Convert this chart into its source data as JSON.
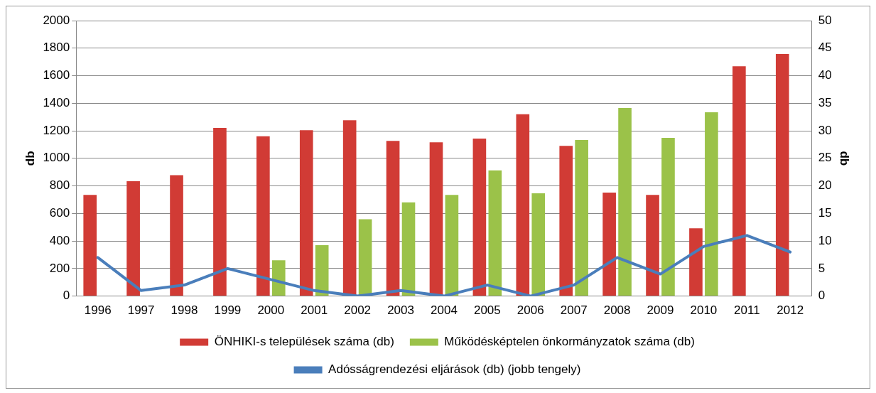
{
  "chart_data": {
    "type": "bar",
    "categories": [
      "1996",
      "1997",
      "1998",
      "1999",
      "2000",
      "2001",
      "2002",
      "2003",
      "2004",
      "2005",
      "2006",
      "2007",
      "2008",
      "2009",
      "2010",
      "2011",
      "2012"
    ],
    "series": [
      {
        "name": "ÖNHIKI-s települések száma (db)",
        "color": "#d13b35",
        "values": [
          735,
          834,
          878,
          1221,
          1160,
          1204,
          1276,
          1127,
          1116,
          1144,
          1320,
          1090,
          751,
          735,
          492,
          1669,
          1757
        ]
      },
      {
        "name": "Működésképtelen önkormányzatok száma (db)",
        "color": "#9bc249",
        "values": [
          null,
          null,
          null,
          null,
          260,
          370,
          558,
          680,
          735,
          912,
          746,
          1133,
          1365,
          1149,
          1335,
          null,
          null
        ]
      },
      {
        "name": "Adósságrendezési eljárások (db) (jobb tengely)",
        "type": "line",
        "axis": "y2",
        "color": "#4a7ebb",
        "values": [
          7,
          1,
          2,
          5,
          3,
          1,
          0,
          1,
          0,
          2,
          0,
          2,
          7,
          4,
          9,
          11,
          8
        ]
      }
    ],
    "ylabel": "db",
    "y2label": "db",
    "ylim": [
      0,
      2000
    ],
    "yticks": [
      0,
      200,
      400,
      600,
      800,
      1000,
      1200,
      1400,
      1600,
      1800,
      2000
    ],
    "y2lim": [
      0,
      50
    ],
    "y2ticks": [
      0,
      5,
      10,
      15,
      20,
      25,
      30,
      35,
      40,
      45,
      50
    ],
    "grid": "y",
    "legend": "bottom",
    "marker": "none",
    "line_style": "solid"
  }
}
